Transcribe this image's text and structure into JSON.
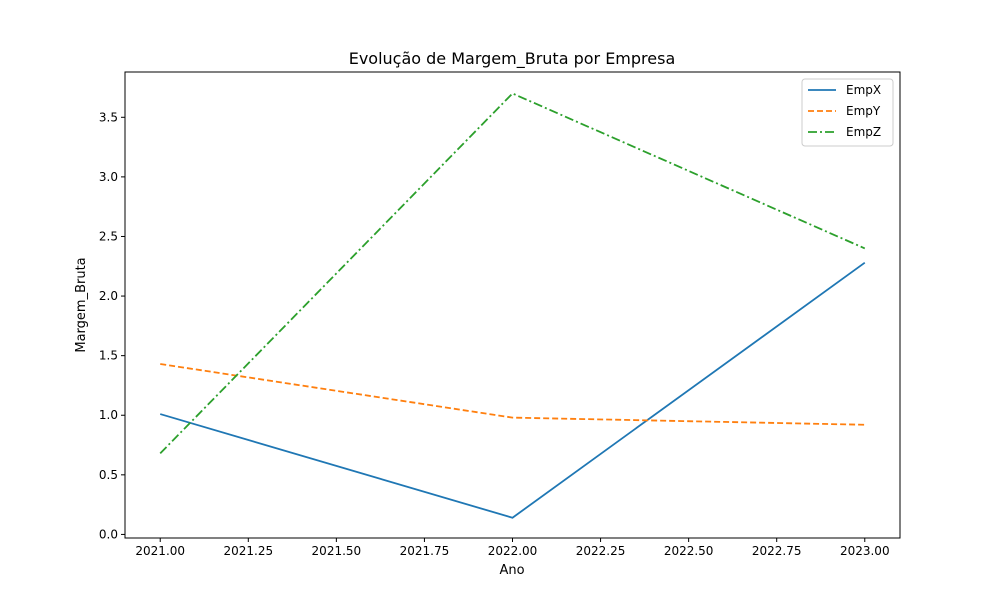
{
  "chart_data": {
    "type": "line",
    "title": "Evolução de Margem_Bruta por Empresa",
    "xlabel": "Ano",
    "ylabel": "Margem_Bruta",
    "x": [
      2021.0,
      2022.0,
      2023.0
    ],
    "xlim": [
      2020.9,
      2023.1
    ],
    "ylim": [
      -0.03,
      3.88
    ],
    "xticks": [
      2021.0,
      2021.25,
      2021.5,
      2021.75,
      2022.0,
      2022.25,
      2022.5,
      2022.75,
      2023.0
    ],
    "xtick_labels": [
      "2021.00",
      "2021.25",
      "2021.50",
      "2021.75",
      "2022.00",
      "2022.25",
      "2022.50",
      "2022.75",
      "2023.00"
    ],
    "yticks": [
      0.0,
      0.5,
      1.0,
      1.5,
      2.0,
      2.5,
      3.0,
      3.5
    ],
    "ytick_labels": [
      "0.0",
      "0.5",
      "1.0",
      "1.5",
      "2.0",
      "2.5",
      "3.0",
      "3.5"
    ],
    "grid": false,
    "legend_position": "top-right",
    "series": [
      {
        "name": "EmpX",
        "values": [
          1.01,
          0.14,
          2.28
        ],
        "color": "#1f77b4",
        "style": "solid"
      },
      {
        "name": "EmpY",
        "values": [
          1.43,
          0.98,
          0.92
        ],
        "color": "#ff7f0e",
        "style": "dashed"
      },
      {
        "name": "EmpZ",
        "values": [
          0.68,
          3.7,
          2.4
        ],
        "color": "#2ca02c",
        "style": "dashdot"
      }
    ]
  }
}
